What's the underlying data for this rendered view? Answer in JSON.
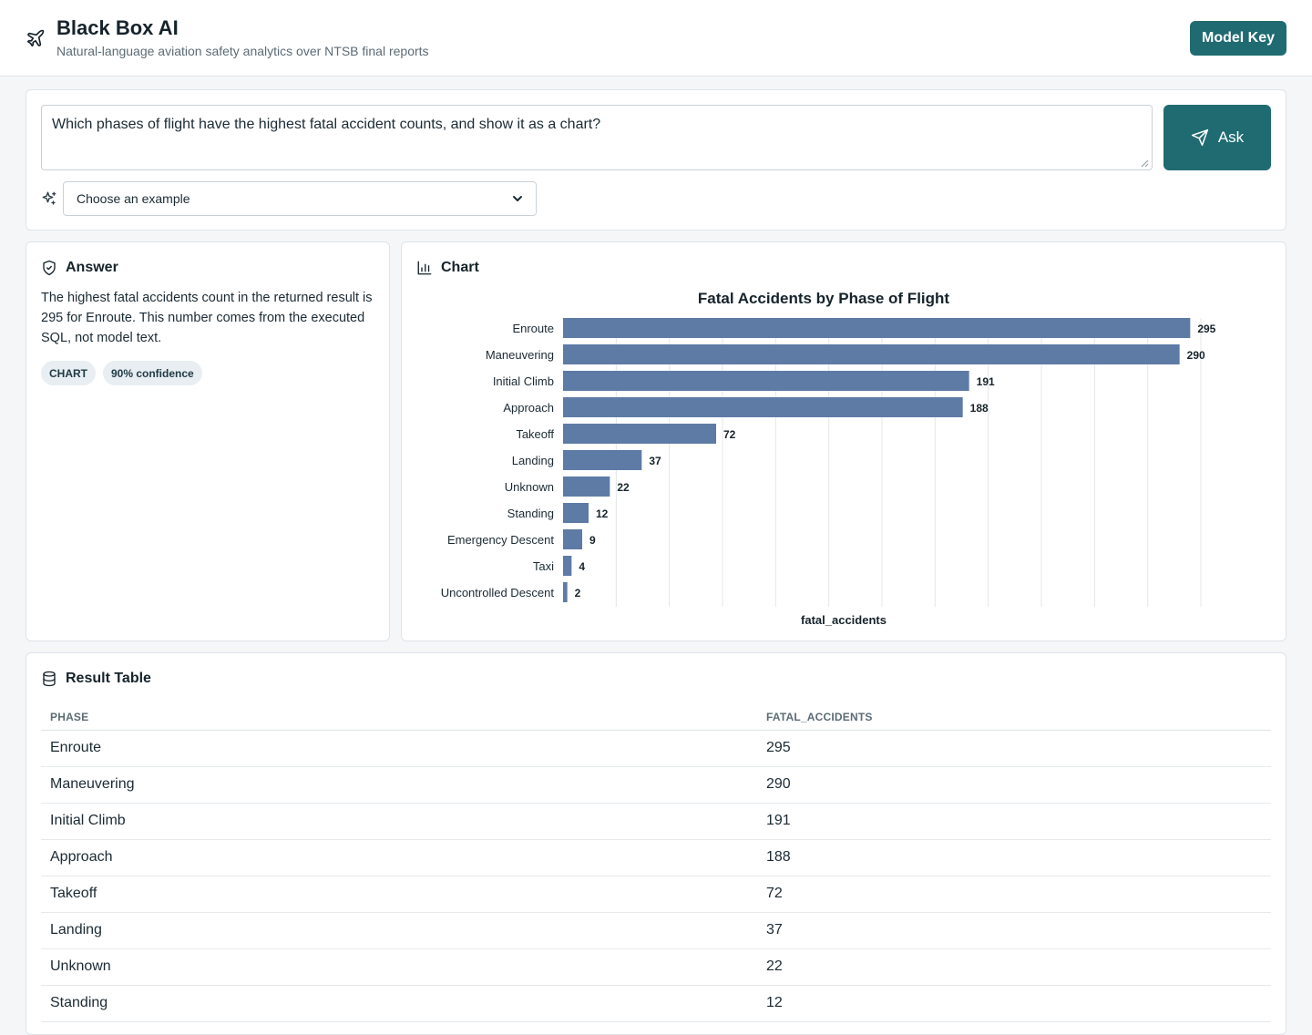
{
  "header": {
    "title": "Black Box AI",
    "subtitle": "Natural-language aviation safety analytics over NTSB final reports",
    "model_key_label": "Model Key",
    "brand_icon": "airplane-icon"
  },
  "query": {
    "text": "Which phases of flight have the highest fatal accident counts, and show it as a chart?",
    "ask_label": "Ask",
    "example_placeholder": "Choose an example"
  },
  "answer": {
    "heading": "Answer",
    "text": "The highest fatal accidents count in the returned result is 295 for Enroute. This number comes from the executed SQL, not model text.",
    "badges": [
      "CHART",
      "90% confidence"
    ]
  },
  "chart": {
    "heading": "Chart"
  },
  "chart_data": {
    "type": "bar",
    "orientation": "horizontal",
    "title": "Fatal Accidents by Phase of Flight",
    "xlabel": "fatal_accidents",
    "ylabel": "",
    "categories": [
      "Enroute",
      "Maneuvering",
      "Initial Climb",
      "Approach",
      "Takeoff",
      "Landing",
      "Unknown",
      "Standing",
      "Emergency Descent",
      "Taxi",
      "Uncontrolled Descent"
    ],
    "values": [
      295,
      290,
      191,
      188,
      72,
      37,
      22,
      12,
      9,
      4,
      2
    ],
    "xlim": [
      0,
      300
    ],
    "grid": true,
    "bar_color": "#5e7ba6",
    "data_labels": true
  },
  "table": {
    "heading": "Result Table",
    "columns": [
      "PHASE",
      "FATAL_ACCIDENTS"
    ],
    "rows": [
      [
        "Enroute",
        "295"
      ],
      [
        "Maneuvering",
        "290"
      ],
      [
        "Initial Climb",
        "191"
      ],
      [
        "Approach",
        "188"
      ],
      [
        "Takeoff",
        "72"
      ],
      [
        "Landing",
        "37"
      ],
      [
        "Unknown",
        "22"
      ],
      [
        "Standing",
        "12"
      ]
    ]
  },
  "colors": {
    "accent": "#1f6b71",
    "bar": "#5e7ba6"
  }
}
